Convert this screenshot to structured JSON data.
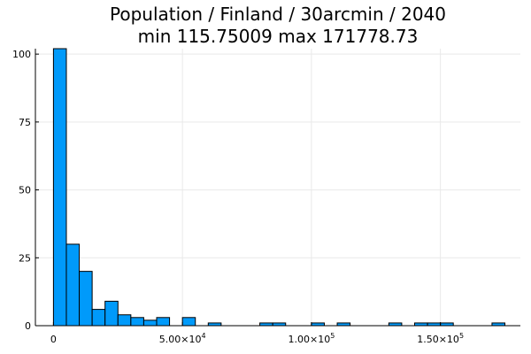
{
  "chart_data": {
    "type": "bar",
    "title": "Population / Finland / 30arcmin / 2040",
    "subtitle": "min 115.75009  max 171778.73",
    "xlabel": "",
    "ylabel": "",
    "xlim": [
      -7000,
      181000
    ],
    "ylim": [
      0,
      102
    ],
    "grid": true,
    "legend": "none",
    "bin_width": 5000,
    "x_ticks": [
      {
        "value": 0,
        "label": "0",
        "sup": ""
      },
      {
        "value": 50000,
        "label": "5.00×10",
        "sup": "4"
      },
      {
        "value": 100000,
        "label": "1.00×10",
        "sup": "5"
      },
      {
        "value": 150000,
        "label": "1.50×10",
        "sup": "5"
      }
    ],
    "y_ticks": [
      {
        "value": 0,
        "label": "0"
      },
      {
        "value": 25,
        "label": "25"
      },
      {
        "value": 50,
        "label": "50"
      },
      {
        "value": 75,
        "label": "75"
      },
      {
        "value": 100,
        "label": "100"
      }
    ],
    "bins": [
      {
        "start": 0,
        "count": 102
      },
      {
        "start": 5000,
        "count": 30
      },
      {
        "start": 10000,
        "count": 20
      },
      {
        "start": 15000,
        "count": 6
      },
      {
        "start": 20000,
        "count": 9
      },
      {
        "start": 25000,
        "count": 4
      },
      {
        "start": 30000,
        "count": 3
      },
      {
        "start": 35000,
        "count": 2
      },
      {
        "start": 40000,
        "count": 3
      },
      {
        "start": 50000,
        "count": 3
      },
      {
        "start": 60000,
        "count": 1
      },
      {
        "start": 80000,
        "count": 1
      },
      {
        "start": 85000,
        "count": 1
      },
      {
        "start": 100000,
        "count": 1
      },
      {
        "start": 110000,
        "count": 1
      },
      {
        "start": 130000,
        "count": 1
      },
      {
        "start": 140000,
        "count": 1
      },
      {
        "start": 145000,
        "count": 1
      },
      {
        "start": 150000,
        "count": 1
      },
      {
        "start": 170000,
        "count": 1
      }
    ],
    "colors": {
      "bar_fill": "#009AFA",
      "bar_stroke": "#000000",
      "grid": "#e9e9e9",
      "axis": "#000000"
    }
  }
}
